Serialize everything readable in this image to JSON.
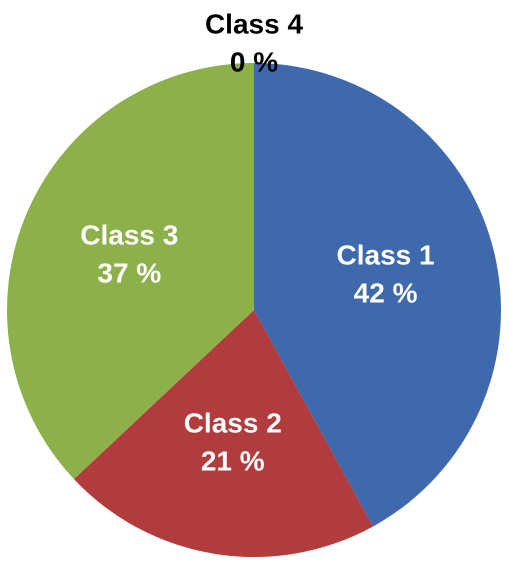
{
  "chart_data": {
    "type": "pie",
    "categories": [
      "Class 1",
      "Class 2",
      "Class 3",
      "Class 4"
    ],
    "values": [
      42,
      21,
      37,
      0
    ],
    "value_labels": [
      "42 %",
      "21 %",
      "37 %",
      "0 %"
    ],
    "colors": [
      "#3e6aad",
      "#b13b3d",
      "#8cb04a",
      "#7d5fa0"
    ]
  }
}
